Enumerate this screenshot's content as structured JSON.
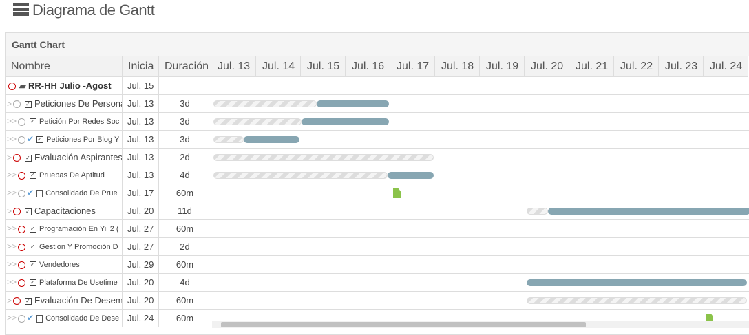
{
  "header": {
    "title": "Diagrama de Gantt"
  },
  "panel": {
    "title": "Gantt Chart"
  },
  "table": {
    "columns": [
      "Nombre",
      "Inicia",
      "Duración"
    ],
    "days": [
      "Jul. 13",
      "Jul. 14",
      "Jul. 15",
      "Jul. 16",
      "Jul. 17",
      "Jul. 18",
      "Jul. 19",
      "Jul. 20",
      "Jul. 21",
      "Jul. 22",
      "Jul. 23",
      "Jul. 24"
    ],
    "rows": [
      {
        "name": "RR-HH Julio -Agost",
        "start": "Jul. 15"
      },
      {
        "name": "Peticiones De Persona",
        "start": "Jul. 13",
        "duration": "3d"
      },
      {
        "name": "Petición Por Redes Soc",
        "start": "Jul. 13",
        "duration": "3d"
      },
      {
        "name": "Peticiones Por Blog Y",
        "start": "Jul. 13",
        "duration": "3d"
      },
      {
        "name": "Evaluación Aspirantes",
        "start": "Jul. 13",
        "duration": "2d"
      },
      {
        "name": "Pruebas De Aptitud",
        "start": "Jul. 13",
        "duration": "4d"
      },
      {
        "name": "Consolidado De Prue",
        "start": "Jul. 17",
        "duration": "60m"
      },
      {
        "name": "Capacitaciones",
        "start": "Jul. 20",
        "duration": "11d"
      },
      {
        "name": "Programación En Yii 2 (",
        "start": "Jul. 27",
        "duration": "60m"
      },
      {
        "name": "Gestión Y Promoción D",
        "start": "Jul. 27",
        "duration": "2d"
      },
      {
        "name": "Vendedores",
        "start": "Jul. 29",
        "duration": "60m"
      },
      {
        "name": "Plataforma De Usetime",
        "start": "Jul. 20",
        "duration": "4d"
      },
      {
        "name": "Evaluación De Desem",
        "start": "Jul. 20",
        "duration": "60m"
      },
      {
        "name": "Consolidado De Dese",
        "start": "Jul. 24",
        "duration": "60m"
      }
    ]
  }
}
